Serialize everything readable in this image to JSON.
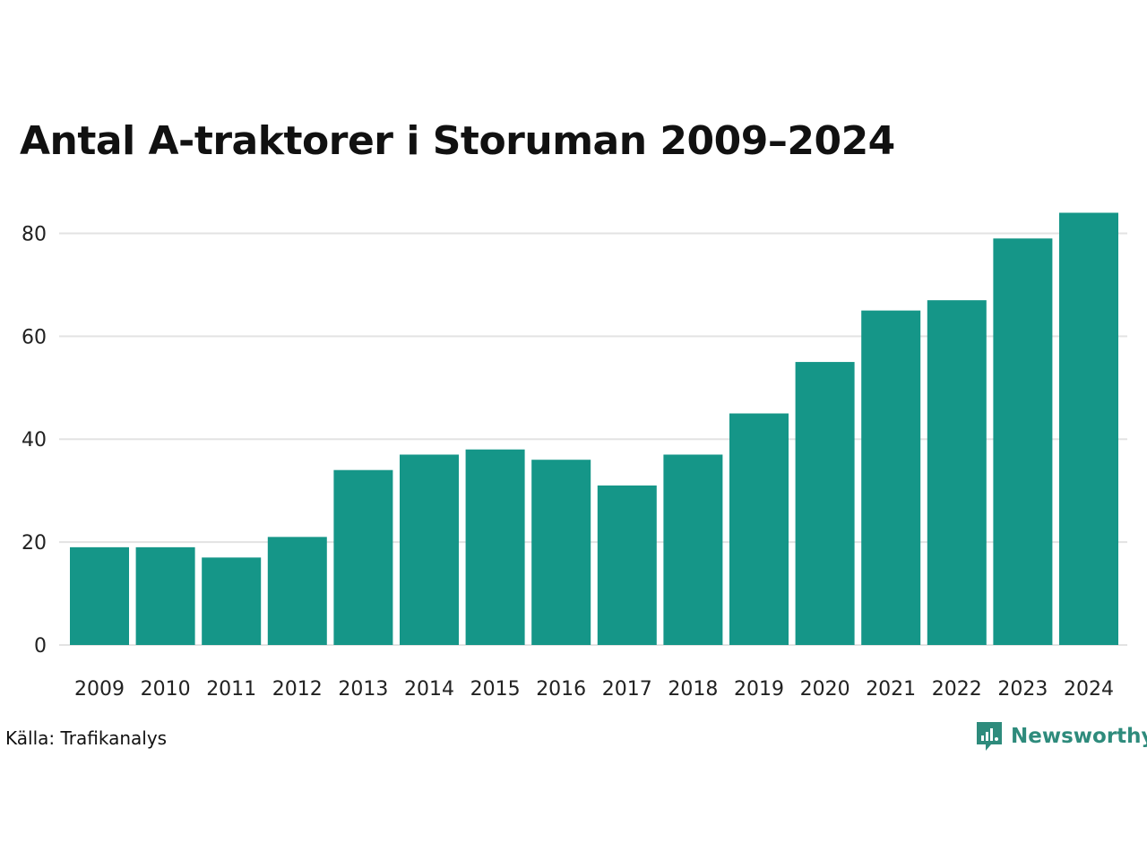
{
  "title": "Antal A-traktorer i Storuman 2009–2024",
  "source": "Källa: Trafikanalys",
  "brand": "Newsworthy",
  "colors": {
    "bar": "#159688",
    "grid": "#e3e3e3",
    "brand": "#2e8b7c"
  },
  "chart_data": {
    "type": "bar",
    "title": "Antal A-traktorer i Storuman 2009–2024",
    "xlabel": "",
    "ylabel": "",
    "categories": [
      "2009",
      "2010",
      "2011",
      "2012",
      "2013",
      "2014",
      "2015",
      "2016",
      "2017",
      "2018",
      "2019",
      "2020",
      "2021",
      "2022",
      "2023",
      "2024"
    ],
    "values": [
      19,
      19,
      17,
      21,
      34,
      37,
      38,
      36,
      31,
      37,
      45,
      55,
      65,
      67,
      79,
      84
    ],
    "ylim": [
      0,
      86
    ],
    "yticks": [
      0,
      20,
      40,
      60,
      80
    ],
    "grid": true,
    "legend": "none"
  }
}
